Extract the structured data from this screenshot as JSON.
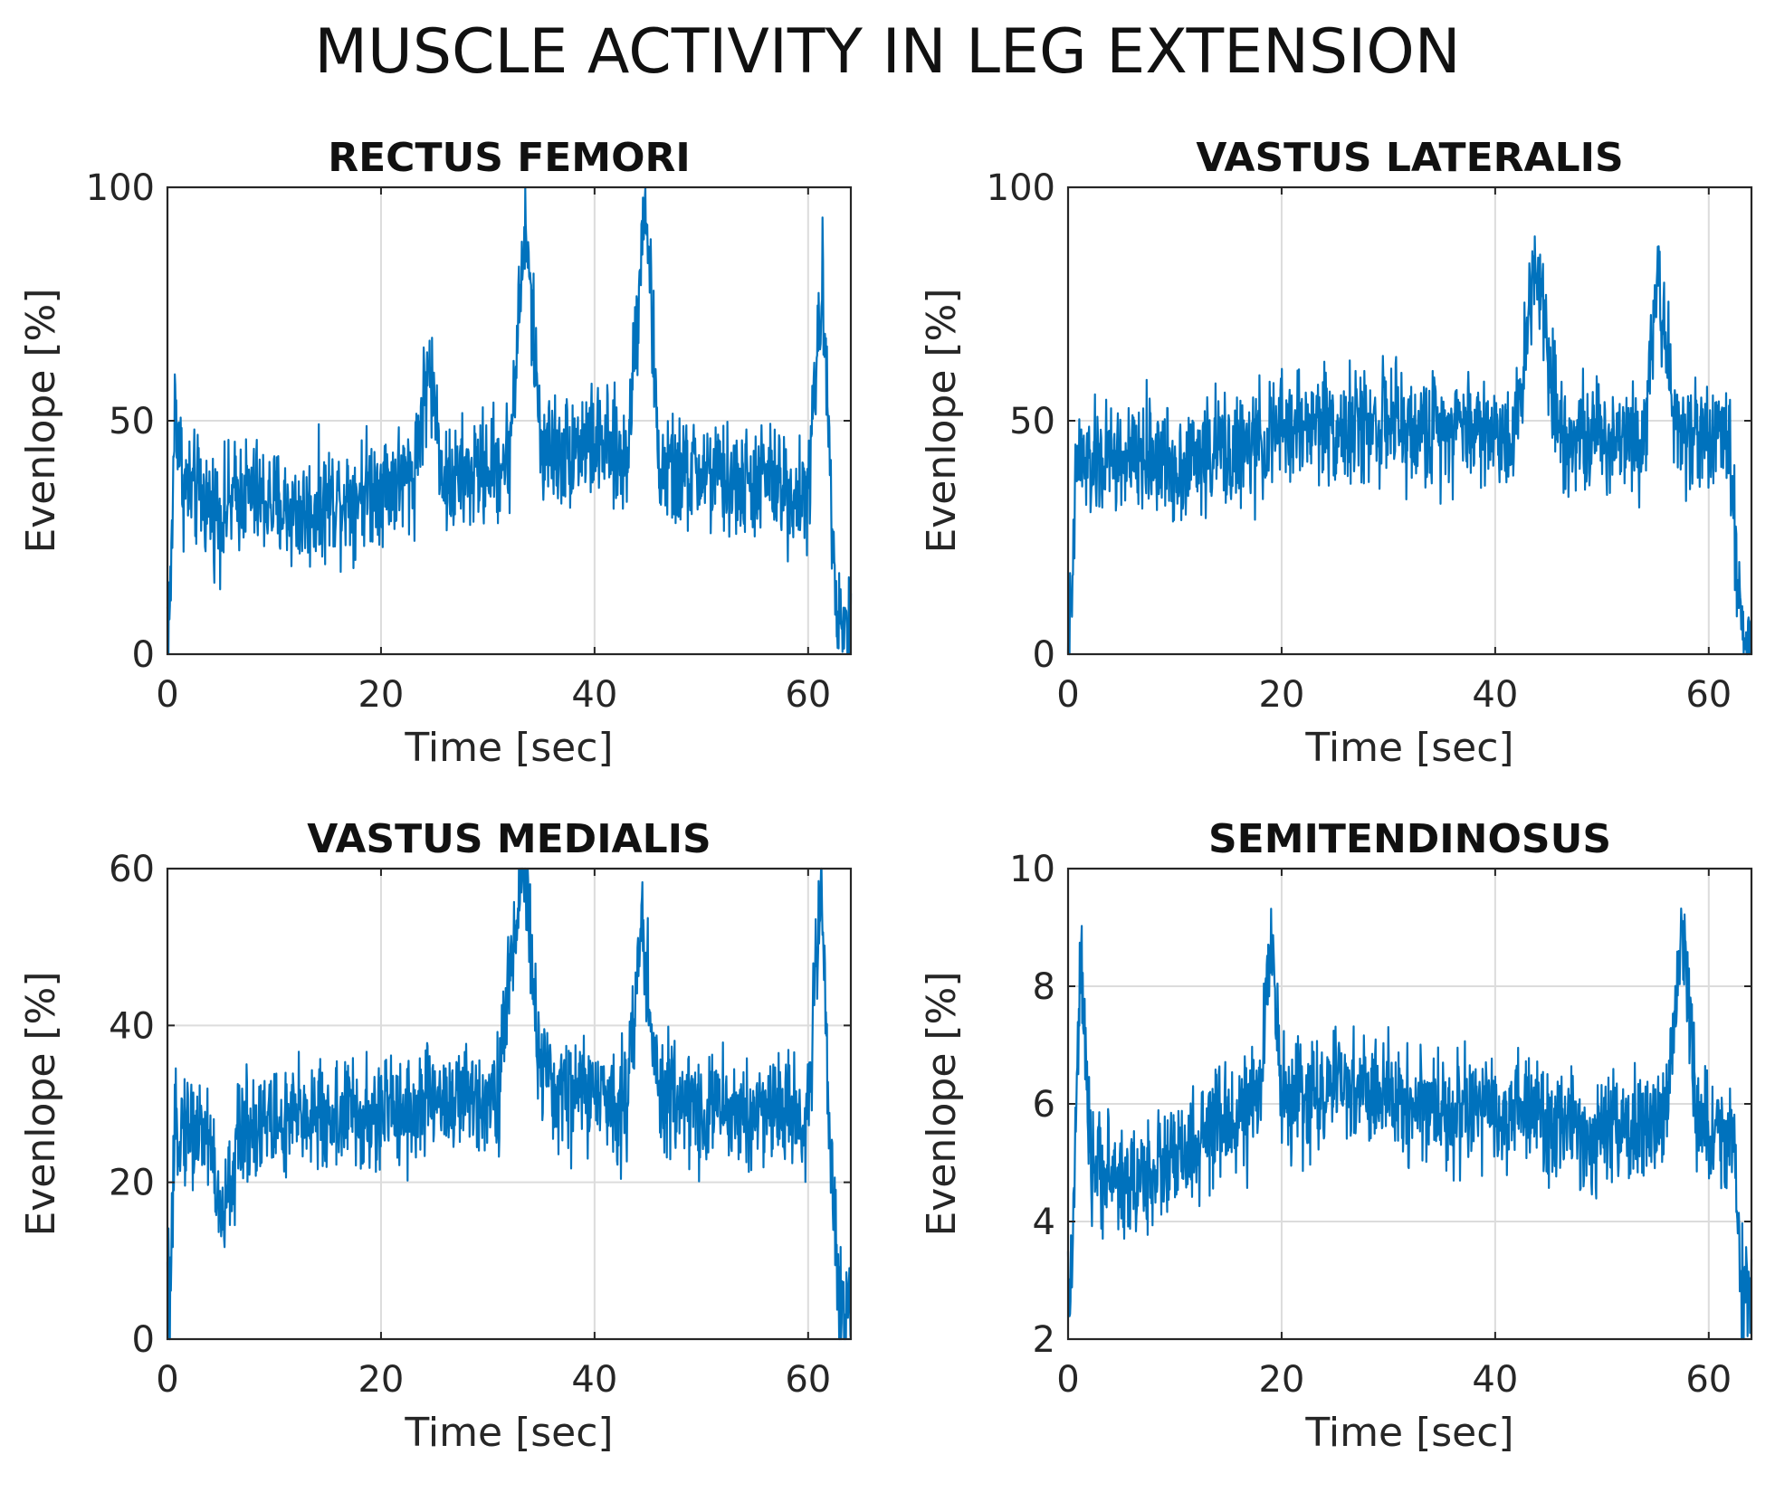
{
  "figure_title": "MUSCLE ACTIVITY IN LEG EXTENSION",
  "colors": {
    "line": "#0072BD",
    "axis": "#262626",
    "grid": "#dcdcdc",
    "text": "#262626"
  },
  "chart_data": [
    {
      "type": "line",
      "title": "RECTUS FEMORI",
      "xlabel": "Time [sec]",
      "ylabel": "Evenlope [%]",
      "xlim": [
        0,
        64
      ],
      "ylim": [
        0,
        100
      ],
      "xticks": [
        0,
        20,
        40,
        60
      ],
      "yticks": [
        0,
        50,
        100
      ],
      "grid": true,
      "series": [
        {
          "name": "RECTUS FEMORI",
          "x": [
            0,
            0.3,
            0.7,
            1.5,
            3,
            5,
            7,
            9,
            11,
            13,
            15,
            17,
            19,
            21,
            23,
            24.5,
            26,
            28,
            30,
            32,
            33.5,
            35,
            37,
            39,
            41,
            43,
            44.8,
            46,
            48,
            50,
            52,
            54,
            56,
            58,
            60,
            61.3,
            62,
            62.7,
            63.3,
            64
          ],
          "values": [
            8,
            12,
            55,
            36,
            34,
            30,
            35,
            33,
            31,
            30,
            33,
            34,
            36,
            37,
            38,
            62,
            36,
            38,
            40,
            42,
            92,
            45,
            43,
            46,
            44,
            41,
            100,
            40,
            38,
            39,
            37,
            36,
            38,
            35,
            34,
            80,
            45,
            10,
            6,
            7
          ]
        }
      ]
    },
    {
      "type": "line",
      "title": "VASTUS LATERALIS",
      "xlabel": "Time [sec]",
      "ylabel": "Evenlope [%]",
      "xlim": [
        0,
        64
      ],
      "ylim": [
        0,
        100
      ],
      "xticks": [
        0,
        20,
        40,
        60
      ],
      "yticks": [
        0,
        50,
        100
      ],
      "grid": true,
      "series": [
        {
          "name": "VASTUS LATERALIS",
          "x": [
            0,
            0.3,
            0.8,
            2,
            4,
            6,
            8,
            10,
            12,
            14,
            16,
            18,
            20,
            22,
            24,
            26,
            28,
            30,
            32,
            34,
            36,
            38,
            40,
            42,
            43.8,
            46,
            48,
            50,
            52,
            54,
            55.2,
            57,
            59,
            61,
            62,
            62.8,
            63.4,
            64
          ],
          "values": [
            5,
            6,
            42,
            40,
            42,
            41,
            43,
            40,
            42,
            44,
            43,
            45,
            48,
            49,
            50,
            48,
            49,
            50,
            47,
            48,
            50,
            49,
            47,
            48,
            87,
            48,
            47,
            46,
            48,
            47,
            83,
            47,
            48,
            46,
            45,
            12,
            3,
            3
          ]
        }
      ]
    },
    {
      "type": "line",
      "title": "VASTUS MEDIALIS",
      "xlabel": "Time [sec]",
      "ylabel": "Evenlope [%]",
      "xlim": [
        0,
        64
      ],
      "ylim": [
        0,
        60
      ],
      "xticks": [
        0,
        20,
        40,
        60
      ],
      "yticks": [
        0,
        20,
        40,
        60
      ],
      "grid": true,
      "series": [
        {
          "name": "VASTUS MEDIALIS",
          "x": [
            0,
            0.3,
            0.8,
            2,
            4,
            5,
            7,
            9,
            11,
            13,
            15,
            17,
            19,
            21,
            23,
            25,
            27,
            29,
            31,
            33.3,
            35,
            37,
            39,
            41,
            43,
            44.5,
            46,
            48,
            50,
            52,
            54,
            56,
            58,
            60,
            61.2,
            62,
            62.8,
            63.4,
            64
          ],
          "values": [
            5,
            6,
            28,
            27,
            26,
            14,
            27,
            28,
            27,
            29,
            28,
            29,
            27,
            30,
            29,
            31,
            30,
            31,
            32,
            62,
            33,
            31,
            32,
            30,
            31,
            53,
            30,
            31,
            29,
            30,
            28,
            30,
            29,
            28,
            60,
            26,
            6,
            3,
            3
          ]
        }
      ]
    },
    {
      "type": "line",
      "title": "SEMITENDINOSUS",
      "xlabel": "Time [sec]",
      "ylabel": "Evenlope [%]",
      "xlim": [
        0,
        64
      ],
      "ylim": [
        2,
        10
      ],
      "xticks": [
        0,
        20,
        40,
        60
      ],
      "yticks": [
        2,
        4,
        6,
        8,
        10
      ],
      "grid": true,
      "series": [
        {
          "name": "SEMITENDINOSUS",
          "x": [
            0,
            0.4,
            1.2,
            2,
            4,
            6,
            8,
            10,
            12,
            14,
            16,
            18,
            19,
            20,
            22,
            24,
            26,
            28,
            30,
            32,
            34,
            36,
            38,
            40,
            42,
            44,
            46,
            48,
            50,
            52,
            54,
            56,
            57.5,
            59,
            61,
            62.3,
            63,
            63.5,
            64
          ],
          "values": [
            2.6,
            3.4,
            8.6,
            5,
            4.8,
            4.6,
            4.9,
            5,
            5.2,
            5.6,
            5.8,
            6,
            9.3,
            6,
            6.1,
            6.2,
            6.3,
            6.2,
            6.1,
            6,
            6,
            5.8,
            6,
            5.7,
            5.9,
            5.8,
            5.6,
            5.5,
            5.4,
            5.5,
            5.6,
            5.7,
            9.2,
            5.6,
            5.5,
            5.4,
            3,
            2.7,
            2.6
          ]
        }
      ]
    }
  ]
}
